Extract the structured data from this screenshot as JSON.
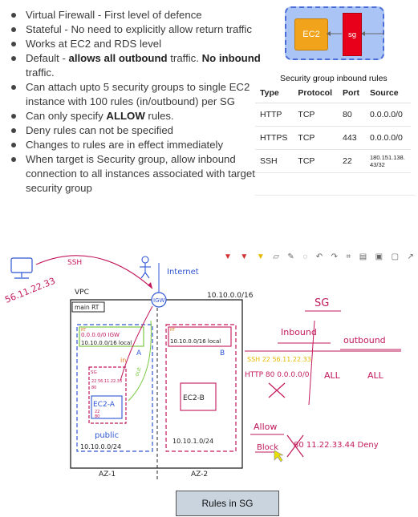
{
  "bullets": [
    {
      "text": "Virtual Firewall - First level of defence"
    },
    {
      "text": "Stateful - No need to explicitly allow return traffic"
    },
    {
      "text": "Works at EC2 and RDS level"
    },
    {
      "pre": "Default - ",
      "b1": "allows all outbound",
      "mid": " traffic. ",
      "b2": "No inbound",
      "post": " traffic."
    },
    {
      "text": "Can attach upto 5 security groups to single EC2 instance with 100 rules (in/outbound) per SG"
    },
    {
      "pre": "Can only specify ",
      "b1": "ALLOW",
      "post": " rules."
    },
    {
      "text": "Deny rules can not be specified"
    },
    {
      "text": "Changes to rules are in effect immediately"
    },
    {
      "text": "When target is Security group, allow inbound connection to all instances associated with target security group"
    }
  ],
  "diagram": {
    "ec2_label": "EC2",
    "sg_label": "sg"
  },
  "table": {
    "title": "Security group inbound rules",
    "headers": [
      "Type",
      "Protocol",
      "Port",
      "Source"
    ],
    "rows": [
      [
        "HTTP",
        "TCP",
        "80",
        "0.0.0.0/0"
      ],
      [
        "HTTPS",
        "TCP",
        "443",
        "0.0.0.0/0"
      ],
      [
        "SSH",
        "TCP",
        "22",
        "180.151.138.\n43/32"
      ]
    ]
  },
  "whiteboard": {
    "ssh": "SSH",
    "ip": "56.11.22.33",
    "internet": "Internet",
    "igw": "IGW",
    "vpc": "VPC",
    "main_rt": "main RT",
    "vpc_cidr": "10.10.0.0/16",
    "rt_a1": "RT",
    "rt_a2": "0.0.0.0/0   IGW",
    "rt_a3": "10.10.0.0/16  local",
    "sub_a": "A",
    "sg_small": "SG",
    "sg_rule1": "22  56.11.22.33",
    "sg_rule2": "80",
    "ec2a": "EC2-A",
    "ec2a_1": "22",
    "ec2a_2": "80",
    "in": "in",
    "out": "out",
    "public": "public",
    "cidr_a": "10.10.0.0/24",
    "az1": "AZ-1",
    "rt_b1": "RT",
    "rt_b2": "10.10.0.0/16  local",
    "sub_b": "B",
    "ec2b": "EC2-B",
    "cidr_b": "10.10.1.0/24",
    "az2": "AZ-2",
    "sg_title": "SG",
    "inbound": "Inbound",
    "outbound": "outbound",
    "ssh_rule": "SSH  22  56.11.22.33",
    "http_rule": "HTTP  80  0.0.0.0/0",
    "all1": "ALL",
    "all2": "ALL",
    "allow": "Allow",
    "block": "Block",
    "deny_rule": "80  11.22.33.44  Deny"
  },
  "toolbar": {
    "icons": [
      "pen-red",
      "pen-red",
      "highlighter-yellow",
      "eraser",
      "pencil",
      "lasso",
      "undo",
      "redo",
      "crop",
      "trash",
      "copy",
      "copy-2",
      "share"
    ]
  },
  "caption": "Rules in SG",
  "colors": {
    "ec2": "#f0a31b",
    "sg": "#e8001b",
    "sg_box": "#a9c4f5",
    "ink_red": "#c2185b",
    "ink_black": "#222",
    "ink_blue": "#2f55d4",
    "ink_orange": "#e07a1e",
    "ink_green": "#7ac943",
    "caption_bg": "#c9d4df"
  }
}
